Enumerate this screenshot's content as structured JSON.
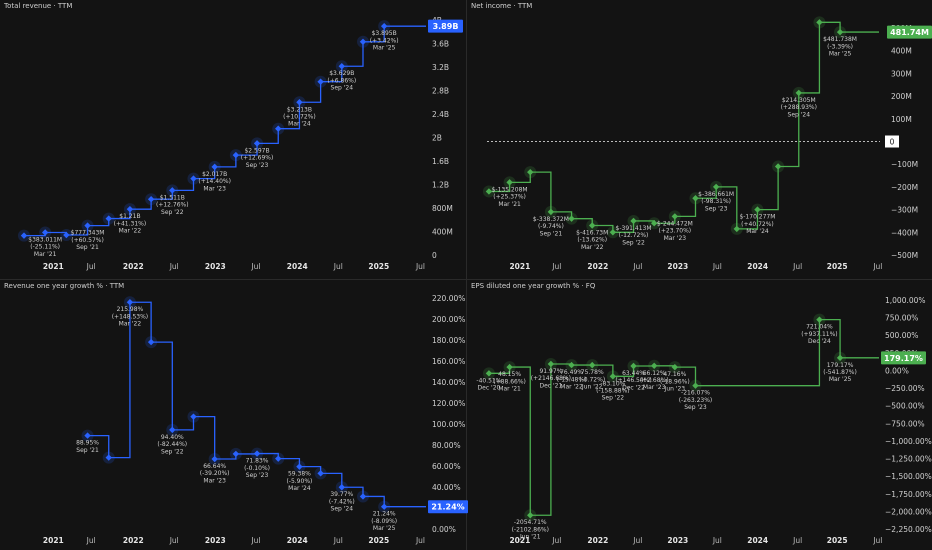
{
  "colors": {
    "background": "#131313",
    "revenue": "#2962ff",
    "income": "#4caf50",
    "text": "#d8d8d8",
    "muted": "#b5b5b5"
  },
  "chart_data": [
    {
      "id": "revenue",
      "type": "line",
      "step": true,
      "title": "Total revenue · TTM",
      "color": "#2962ff",
      "ylim": [
        0,
        4
      ],
      "y_ticks": [
        0,
        0.4,
        0.8,
        1.2,
        1.6,
        2,
        2.4,
        2.8,
        3.2,
        3.6,
        4
      ],
      "y_tick_labels": [
        "0",
        "400M",
        "800M",
        "1.2B",
        "1.6B",
        "2B",
        "2.4B",
        "2.8B",
        "3.2B",
        "3.6B",
        "4B"
      ],
      "x_ticks": [
        "2021",
        "Jul",
        "2022",
        "Jul",
        "2023",
        "Jul",
        "2024",
        "Jul",
        "2025",
        "Jul"
      ],
      "x": [
        "Dec '20",
        "Mar '21",
        "Jun '21",
        "Sep '21",
        "Dec '21",
        "Mar '22",
        "Jun '22",
        "Sep '22",
        "Dec '22",
        "Mar '23",
        "Jun '23",
        "Sep '23",
        "Dec '23",
        "Mar '24",
        "Jun '24",
        "Sep '24",
        "Dec '24",
        "Mar '25"
      ],
      "values": [
        0.33,
        0.383,
        0.34,
        0.5,
        0.62,
        0.78,
        0.95,
        1.1,
        1.3,
        1.5,
        1.7,
        1.9,
        2.15,
        2.6,
        2.95,
        3.213,
        3.629,
        3.895
      ],
      "current_label": "3.89B",
      "annotations": [
        {
          "i": 1,
          "lines": [
            "$383.011M",
            "(-25.11%)",
            "Mar '21"
          ]
        },
        {
          "i": 3,
          "lines": [
            "$777.343M",
            "(+60.57%)",
            "Sep '21"
          ]
        },
        {
          "i": 5,
          "lines": [
            "$1.21B",
            "(+41.31%)",
            "Mar '22"
          ]
        },
        {
          "i": 7,
          "lines": [
            "$1.511B",
            "(+12.76%)",
            "Sep '22"
          ]
        },
        {
          "i": 9,
          "lines": [
            "$2.017B",
            "(+14.40%)",
            "Mar '23"
          ]
        },
        {
          "i": 11,
          "lines": [
            "$2.597B",
            "(+12.69%)",
            "Sep '23"
          ]
        },
        {
          "i": 13,
          "lines": [
            "$3.213B",
            "(+10.72%)",
            "Mar '24"
          ]
        },
        {
          "i": 15,
          "lines": [
            "$3.629B",
            "(+6.86%)",
            "Sep '24"
          ]
        },
        {
          "i": 17,
          "lines": [
            "$3.895B",
            "(+3.42%)",
            "Mar '25"
          ]
        }
      ]
    },
    {
      "id": "income",
      "type": "line",
      "step": true,
      "title": "Net income · TTM",
      "color": "#4caf50",
      "zero_line": true,
      "ylim": [
        -500,
        500
      ],
      "y_ticks": [
        -500,
        -400,
        -300,
        -200,
        -100,
        0,
        100,
        200,
        300,
        400,
        500
      ],
      "y_tick_labels": [
        "−500M",
        "−400M",
        "−300M",
        "−200M",
        "−100M",
        "0",
        "100M",
        "200M",
        "300M",
        "400M",
        "500M"
      ],
      "x_ticks": [
        "2021",
        "Jul",
        "2022",
        "Jul",
        "2023",
        "Jul",
        "2024",
        "Jul",
        "2025",
        "Jul"
      ],
      "x": [
        "Dec '20",
        "Mar '21",
        "Jun '21",
        "Sep '21",
        "Dec '21",
        "Mar '22",
        "Jun '22",
        "Sep '22",
        "Dec '22",
        "Mar '23",
        "Jun '23",
        "Sep '23",
        "Dec '23",
        "Mar '24",
        "Jun '24",
        "Sep '24",
        "Dec '24",
        "Mar '25"
      ],
      "values": [
        -220,
        -180,
        -135,
        -310,
        -340,
        -370,
        -400,
        -350,
        -360,
        -330,
        -250,
        -200,
        -385,
        -300,
        -110,
        214,
        525,
        482
      ],
      "current_label": "481.74M",
      "annotations": [
        {
          "i": 1,
          "lines": [
            "$-135.208M",
            "(+25.37%)",
            "Mar '21"
          ]
        },
        {
          "i": 3,
          "lines": [
            "$-338.372M",
            "(-9.74%)",
            "Sep '21"
          ]
        },
        {
          "i": 5,
          "lines": [
            "$-416.73M",
            "(-13.62%)",
            "Mar '22"
          ]
        },
        {
          "i": 7,
          "lines": [
            "$-391.413M",
            "(-12.72%)",
            "Sep '22"
          ]
        },
        {
          "i": 9,
          "lines": [
            "$-244.472M",
            "(+23.70%)",
            "Mar '23"
          ]
        },
        {
          "i": 11,
          "lines": [
            "$-386.661M",
            "(-98.31%)",
            "Sep '23"
          ]
        },
        {
          "i": 13,
          "lines": [
            "$-170.277M",
            "(+40.72%)",
            "Mar '24"
          ]
        },
        {
          "i": 15,
          "lines": [
            "$214.305M",
            "(+288.93%)",
            "Sep '24"
          ]
        },
        {
          "i": 17,
          "lines": [
            "$481.738M",
            "(-3.39%)",
            "Mar '25"
          ]
        }
      ]
    },
    {
      "id": "rev_growth",
      "type": "line",
      "step": true,
      "title": "Revenue one year growth % · TTM",
      "color": "#2962ff",
      "ylim": [
        0,
        220
      ],
      "y_ticks": [
        0,
        20,
        40,
        60,
        80,
        100,
        120,
        140,
        160,
        180,
        200,
        220
      ],
      "y_tick_labels": [
        "0.00%",
        "20.00%",
        "40.00%",
        "60.00%",
        "80.00%",
        "100.00%",
        "120.00%",
        "140.00%",
        "160.00%",
        "180.00%",
        "200.00%",
        "220.00%"
      ],
      "x_ticks": [
        "2021",
        "Jul",
        "2022",
        "Jul",
        "2023",
        "Jul",
        "2024",
        "Jul",
        "2025",
        "Jul"
      ],
      "x": [
        "Sep '21",
        "Dec '21",
        "Mar '22",
        "Jun '22",
        "Sep '22",
        "Dec '22",
        "Mar '23",
        "Jun '23",
        "Sep '23",
        "Dec '23",
        "Mar '24",
        "Jun '24",
        "Sep '24",
        "Dec '24",
        "Mar '25"
      ],
      "x_index": [
        3,
        4,
        5,
        6,
        7,
        8,
        9,
        10,
        11,
        12,
        13,
        14,
        15,
        16,
        17
      ],
      "values": [
        88.95,
        68,
        215.98,
        178,
        94.4,
        107,
        66.64,
        71.5,
        71.83,
        67,
        59.38,
        53,
        39.77,
        31,
        21.24
      ],
      "current_label": "21.24%",
      "annotations": [
        {
          "i": 0,
          "lines": [
            "88.95%",
            "Sep '21"
          ]
        },
        {
          "i": 2,
          "lines": [
            "215.98%",
            "(+148.53%)",
            "Mar '22"
          ]
        },
        {
          "i": 4,
          "lines": [
            "94.40%",
            "(-82.44%)",
            "Sep '22"
          ]
        },
        {
          "i": 6,
          "lines": [
            "66.64%",
            "(-39.20%)",
            "Mar '23"
          ]
        },
        {
          "i": 8,
          "lines": [
            "71.83%",
            "(-0.10%)",
            "Sep '23"
          ]
        },
        {
          "i": 10,
          "lines": [
            "59.38%",
            "(-5.90%)",
            "Mar '24"
          ]
        },
        {
          "i": 12,
          "lines": [
            "39.77%",
            "(-7.42%)",
            "Sep '24"
          ]
        },
        {
          "i": 14,
          "lines": [
            "21.24%",
            "(-8.09%)",
            "Mar '25"
          ]
        }
      ]
    },
    {
      "id": "eps_growth",
      "type": "line",
      "step": true,
      "title": "EPS diluted one year growth % · FQ",
      "color": "#4caf50",
      "ylim": [
        -2250,
        1000
      ],
      "y_ticks": [
        -2250,
        -2000,
        -1750,
        -1500,
        -1250,
        -1000,
        -750,
        -500,
        -250,
        0,
        250,
        500,
        750,
        1000
      ],
      "y_tick_labels": [
        "−2,250.00%",
        "−2,000.00%",
        "−1,750.00%",
        "−1,500.00%",
        "−1,250.00%",
        "−1,000.00%",
        "−750.00%",
        "−500.00%",
        "−250.00%",
        "0.00%",
        "250.00%",
        "500.00%",
        "750.00%",
        "1,000.00%"
      ],
      "x_ticks": [
        "2021",
        "Jul",
        "2022",
        "Jul",
        "2023",
        "Jul",
        "2024",
        "Jul",
        "2025",
        "Jul"
      ],
      "x": [
        "Dec '20",
        "Mar '21",
        "Jun '21",
        "Sep '21",
        "Dec '21",
        "Mar '22",
        "Jun '22",
        "Sep '22",
        "Dec '22",
        "Mar '23",
        "Jun '23",
        "Sep '23",
        "Dec '23",
        "Mar '24",
        "Jun '24",
        "Sep '24",
        "Dec '24",
        "Mar '25"
      ],
      "values": [
        -40.51,
        48.15,
        -2054.71,
        91.97,
        76.49,
        75.78,
        -83.1,
        63.44,
        66.12,
        47.16,
        -216.07,
        null,
        null,
        null,
        null,
        null,
        721.04,
        179.17
      ],
      "current_label": "179.17%",
      "annotations": [
        {
          "i": 0,
          "lines": [
            "-40.51%",
            "Dec '20"
          ]
        },
        {
          "i": 1,
          "lines": [
            "48.15%",
            "(+88.66%)",
            "Mar '21"
          ]
        },
        {
          "i": 2,
          "lines": [
            "-2054.71%",
            "(-2102.86%)",
            "Jun '21"
          ]
        },
        {
          "i": 3,
          "lines": [
            "91.97%",
            "(+2146.68%)",
            "Dec '21"
          ]
        },
        {
          "i": 4,
          "lines": [
            "76.49%",
            "(-15.48%)",
            "Mar '22"
          ]
        },
        {
          "i": 5,
          "lines": [
            "75.78%",
            "(-0.72%)",
            "Jun '22"
          ]
        },
        {
          "i": 6,
          "lines": [
            "-83.10%",
            "(-158.88%)",
            "Sep '22"
          ]
        },
        {
          "i": 7,
          "lines": [
            "63.44%",
            "(+146.54%)",
            "Dec '22"
          ]
        },
        {
          "i": 8,
          "lines": [
            "66.12%",
            "(+2.68%)",
            "Mar '23"
          ]
        },
        {
          "i": 9,
          "lines": [
            "47.16%",
            "(-18.96%)",
            "Jun '23"
          ]
        },
        {
          "i": 10,
          "lines": [
            "-216.07%",
            "(-263.23%)",
            "Sep '23"
          ]
        },
        {
          "i": 16,
          "lines": [
            "721.04%",
            "(+937.11%)",
            "Dec '24"
          ]
        },
        {
          "i": 17,
          "lines": [
            "179.17%",
            "(-541.87%)",
            "Mar '25"
          ]
        }
      ]
    }
  ]
}
